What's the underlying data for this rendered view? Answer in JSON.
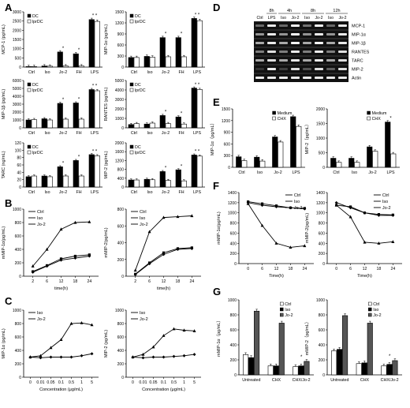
{
  "panel_letters": {
    "A": "A",
    "B": "B",
    "C": "C",
    "D": "D",
    "E": "E",
    "F": "F",
    "G": "G"
  },
  "gel": {
    "header_times": [
      "8h",
      "4h",
      "8h",
      "12h"
    ],
    "lanes": [
      "Ctrl",
      "LPS",
      "Iso",
      "Jo-2",
      "Iso",
      "Jo-2",
      "Iso",
      "Jo-2"
    ],
    "rows": [
      "MCP-1",
      "MIP-1α",
      "MIP-1β",
      "RANTES",
      "TARC",
      "MIP-2",
      "Actin"
    ]
  },
  "chart_data": [
    {
      "id": "A1",
      "type": "bar",
      "categories": [
        "Ctrl",
        "Iso",
        "Jo-2",
        "FH",
        "LPS"
      ],
      "ylabel": "MCP-1 (pg/mL)",
      "ylim": [
        0,
        3000
      ],
      "yticks": [
        0,
        500,
        1000,
        1500,
        2000,
        2500,
        3000
      ],
      "legend": [
        "DC",
        "lprDC"
      ],
      "series": [
        {
          "name": "DC",
          "values": [
            30,
            60,
            820,
            720,
            2580
          ]
        },
        {
          "name": "lprDC",
          "values": [
            30,
            50,
            60,
            60,
            2480
          ]
        }
      ],
      "stars": [
        "",
        "",
        "*",
        "*",
        "* *"
      ]
    },
    {
      "id": "A2",
      "type": "bar",
      "categories": [
        "Ctrl",
        "Iso",
        "Jo-2",
        "FH",
        "LPS"
      ],
      "ylabel": "MIP-1α (pg/mL)",
      "ylim": [
        0,
        1500
      ],
      "yticks": [
        0,
        300,
        600,
        900,
        1200,
        1500
      ],
      "legend": [
        "DC",
        "lprDC"
      ],
      "series": [
        {
          "name": "DC",
          "values": [
            260,
            290,
            800,
            800,
            1320
          ]
        },
        {
          "name": "lprDC",
          "values": [
            260,
            270,
            280,
            280,
            1260
          ]
        }
      ],
      "stars": [
        "",
        "",
        "*",
        "*",
        "* *"
      ]
    },
    {
      "id": "A3",
      "type": "bar",
      "categories": [
        "Ctrl",
        "Iso",
        "Jo-2",
        "FH",
        "LPS"
      ],
      "ylabel": "MIP-1β (pg/mL)",
      "ylim": [
        0,
        6000
      ],
      "yticks": [
        0,
        1000,
        2000,
        3000,
        4000,
        5000,
        6000
      ],
      "legend": [
        "DC",
        "lprDC"
      ],
      "series": [
        {
          "name": "DC",
          "values": [
            1000,
            1150,
            3100,
            3150,
            4850
          ]
        },
        {
          "name": "lprDC",
          "values": [
            1050,
            1000,
            1100,
            1100,
            4700
          ]
        }
      ],
      "stars": [
        "",
        "",
        "*",
        "*",
        "* *"
      ]
    },
    {
      "id": "A4",
      "type": "bar",
      "categories": [
        "Ctrl",
        "Iso",
        "Jo-2",
        "FH",
        "LPS"
      ],
      "ylabel": "RANTES (pg/mL)",
      "ylim": [
        0,
        5000
      ],
      "yticks": [
        0,
        1000,
        2000,
        3000,
        4000,
        5000
      ],
      "legend": [
        "DC",
        "lprDC"
      ],
      "series": [
        {
          "name": "DC",
          "values": [
            350,
            400,
            1300,
            1150,
            4200
          ]
        },
        {
          "name": "lprDC",
          "values": [
            450,
            500,
            450,
            400,
            4050
          ]
        }
      ],
      "stars": [
        "",
        "",
        "*",
        "*",
        "* *"
      ]
    },
    {
      "id": "A5",
      "type": "bar",
      "categories": [
        "Ctrl",
        "Iso",
        "Jo-2",
        "FH",
        "LPS"
      ],
      "ylabel": "TARC (ng/mL)",
      "ylim": [
        0,
        120
      ],
      "yticks": [
        0,
        20,
        40,
        60,
        80,
        100,
        120
      ],
      "legend": [
        "DC",
        "lprDC"
      ],
      "series": [
        {
          "name": "DC",
          "values": [
            28,
            30,
            55,
            72,
            88
          ]
        },
        {
          "name": "lprDC",
          "values": [
            30,
            28,
            30,
            30,
            85
          ]
        }
      ],
      "stars": [
        "",
        "",
        "*",
        "*",
        "* *"
      ]
    },
    {
      "id": "A6",
      "type": "bar",
      "categories": [
        "Ctrl",
        "Iso",
        "Jo-2",
        "FH",
        "LPS"
      ],
      "ylabel": "MIP-2 (pg/mL)",
      "ylim": [
        0,
        2000
      ],
      "yticks": [
        0,
        400,
        800,
        1200,
        1600,
        2000
      ],
      "legend": [
        "DC",
        "lprDC"
      ],
      "series": [
        {
          "name": "DC",
          "values": [
            320,
            350,
            700,
            780,
            1450
          ]
        },
        {
          "name": "lprDC",
          "values": [
            320,
            330,
            300,
            280,
            1400
          ]
        }
      ],
      "stars": [
        "",
        "",
        "*",
        "*",
        "* *"
      ]
    },
    {
      "id": "B1",
      "type": "line",
      "x": [
        2,
        6,
        12,
        18,
        24
      ],
      "xlabel": "time(h)",
      "ylabel": "mMIP-1α(pg/mL)",
      "ylim": [
        0,
        1000
      ],
      "yticks": [
        0,
        200,
        400,
        600,
        800,
        1000
      ],
      "series": [
        {
          "name": "Ctrl",
          "values": [
            60,
            150,
            240,
            270,
            300
          ]
        },
        {
          "name": "Iso",
          "values": [
            70,
            160,
            260,
            300,
            320
          ]
        },
        {
          "name": "Jo-2",
          "values": [
            150,
            400,
            700,
            800,
            810
          ]
        }
      ]
    },
    {
      "id": "B2",
      "type": "line",
      "x": [
        2,
        6,
        12,
        18,
        24
      ],
      "xlabel": "time(h)",
      "ylabel": "mMIP-2(pg/mL)",
      "ylim": [
        0,
        800
      ],
      "yticks": [
        0,
        200,
        400,
        600,
        800
      ],
      "series": [
        {
          "name": "Ctrl",
          "values": [
            20,
            150,
            260,
            320,
            330
          ]
        },
        {
          "name": "Iso",
          "values": [
            25,
            160,
            280,
            330,
            340
          ]
        },
        {
          "name": "Jo-2",
          "values": [
            70,
            530,
            700,
            710,
            720
          ]
        }
      ]
    },
    {
      "id": "C1",
      "type": "line",
      "x": [
        "0",
        "0.01",
        "0.05",
        "0.1",
        "0.5",
        "1",
        "5"
      ],
      "xlabel": "Concentration (μg/mL)",
      "ylabel": "MIP-1α (pg/mL)",
      "ylim": [
        0,
        1000
      ],
      "yticks": [
        0,
        200,
        400,
        600,
        800,
        1000
      ],
      "series": [
        {
          "name": "Iso",
          "values": [
            300,
            290,
            300,
            300,
            300,
            320,
            350
          ]
        },
        {
          "name": "Jo-2",
          "values": [
            300,
            320,
            440,
            560,
            800,
            810,
            780
          ]
        }
      ]
    },
    {
      "id": "C2",
      "type": "line",
      "x": [
        "0",
        "0.01",
        "0.05",
        "0.1",
        "0.5",
        "1",
        "5"
      ],
      "xlabel": "Concentration (μg/mL)",
      "ylabel": "MIP-2 (pg/mL)",
      "ylim": [
        0,
        1000
      ],
      "yticks": [
        0,
        200,
        400,
        600,
        800,
        1000
      ],
      "series": [
        {
          "name": "Iso",
          "values": [
            300,
            290,
            300,
            300,
            310,
            320,
            340
          ]
        },
        {
          "name": "Jo-2",
          "values": [
            300,
            340,
            450,
            620,
            720,
            700,
            690
          ]
        }
      ]
    },
    {
      "id": "E1",
      "type": "bar",
      "categories": [
        "Ctrl",
        "Iso",
        "Jo-2",
        "LPS"
      ],
      "ylabel": "MIP-1α（pg/mL）",
      "ylim": [
        0,
        1500
      ],
      "yticks": [
        0,
        300,
        600,
        900,
        1200,
        1500
      ],
      "legend": [
        "Medium",
        "CHX"
      ],
      "series": [
        {
          "name": "Medium",
          "values": [
            270,
            260,
            780,
            1300
          ]
        },
        {
          "name": "CHX",
          "values": [
            170,
            160,
            650,
            1050
          ]
        }
      ],
      "stars": [
        "",
        "",
        "",
        ""
      ]
    },
    {
      "id": "E2",
      "type": "bar",
      "categories": [
        "Ctrl",
        "Iso",
        "Jo-2",
        "LPS"
      ],
      "ylabel": "MIP-2（pg/mL）",
      "ylim": [
        0,
        2000
      ],
      "yticks": [
        0,
        500,
        1000,
        1500,
        2000
      ],
      "legend": [
        "Medium",
        "CHX"
      ],
      "series": [
        {
          "name": "Medium",
          "values": [
            310,
            310,
            700,
            1550
          ]
        },
        {
          "name": "CHX",
          "values": [
            170,
            170,
            550,
            460
          ]
        }
      ],
      "stars": [
        "",
        "",
        "",
        "*"
      ]
    },
    {
      "id": "F1",
      "type": "line",
      "x": [
        0,
        6,
        12,
        18,
        24
      ],
      "xlabel": "Time(h)",
      "ylabel": "mMIP-1α(pg/mL)",
      "ylim": [
        0,
        1400
      ],
      "yticks": [
        0,
        200,
        400,
        600,
        800,
        1000,
        1200,
        1400
      ],
      "series": [
        {
          "name": "Ctrl",
          "values": [
            1200,
            1150,
            1120,
            1100,
            1080
          ]
        },
        {
          "name": "Iso",
          "values": [
            1220,
            1180,
            1140,
            1100,
            1090
          ]
        },
        {
          "name": "Jo-2",
          "values": [
            1180,
            750,
            400,
            320,
            350
          ]
        }
      ]
    },
    {
      "id": "F2",
      "type": "line",
      "x": [
        0,
        6,
        12,
        18,
        24
      ],
      "xlabel": "Time(h)",
      "ylabel": "mMIP-2(pg/mL)",
      "ylim": [
        0,
        1400
      ],
      "yticks": [
        0,
        200,
        400,
        600,
        800,
        1000,
        1200,
        1400
      ],
      "series": [
        {
          "name": "Ctrl",
          "values": [
            1200,
            1100,
            1000,
            950,
            950
          ]
        },
        {
          "name": "Iso",
          "values": [
            1150,
            1120,
            1000,
            970,
            960
          ]
        },
        {
          "name": "Jo-2",
          "values": [
            1150,
            920,
            420,
            400,
            430
          ]
        }
      ]
    },
    {
      "id": "G1",
      "type": "bar",
      "categories": [
        "Untreated",
        "CHX",
        "CHX/Jo-2"
      ],
      "ylabel": "mMIP-1α（pg/mL）",
      "ylim": [
        0,
        1000
      ],
      "yticks": [
        0,
        200,
        400,
        600,
        800,
        1000
      ],
      "legend": [
        "Ctrl",
        "Iso",
        "Jo-2"
      ],
      "series": [
        {
          "name": "Ctrl",
          "values": [
            270,
            120,
            110
          ]
        },
        {
          "name": "Iso",
          "values": [
            230,
            120,
            120
          ]
        },
        {
          "name": "Jo-2",
          "values": [
            850,
            690,
            180
          ]
        }
      ],
      "stars": [
        "",
        "",
        "*"
      ]
    },
    {
      "id": "G2",
      "type": "bar",
      "categories": [
        "Untreated",
        "CHX",
        "CHX/Jo-2"
      ],
      "ylabel": "mMIP-2（pg/mL）",
      "ylim": [
        0,
        1000
      ],
      "yticks": [
        0,
        200,
        400,
        600,
        800,
        1000
      ],
      "legend": [
        "Ctrl",
        "Iso",
        "Jo-2"
      ],
      "series": [
        {
          "name": "Ctrl",
          "values": [
            320,
            150,
            120
          ]
        },
        {
          "name": "Iso",
          "values": [
            340,
            160,
            140
          ]
        },
        {
          "name": "Jo-2",
          "values": [
            790,
            690,
            190
          ]
        }
      ],
      "stars": [
        "",
        "",
        "*"
      ]
    }
  ]
}
